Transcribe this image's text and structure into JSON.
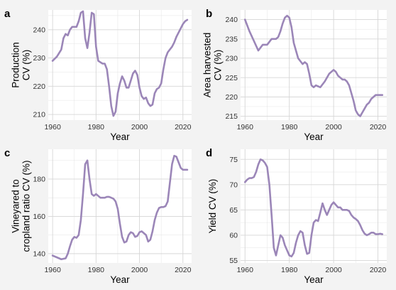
{
  "style": {
    "background": "#f3f3f3",
    "plot_background": "#ffffff",
    "line_color": "#9b86b8"
  },
  "chart_data": [
    {
      "panel": "a",
      "type": "line",
      "xlabel": "Year",
      "ylabel_lines": [
        "Production",
        "CV (%)"
      ],
      "xlim": [
        1958,
        2024
      ],
      "ylim": [
        208,
        247
      ],
      "xticks": [
        1960,
        1980,
        2000,
        2020
      ],
      "yticks": [
        210,
        220,
        230,
        240
      ],
      "grid": true,
      "x": [
        1960,
        1962,
        1964,
        1965,
        1966,
        1967,
        1968,
        1969,
        1970,
        1971,
        1972,
        1973,
        1974,
        1975,
        1976,
        1977,
        1978,
        1979,
        1980,
        1981,
        1982,
        1983,
        1984,
        1985,
        1986,
        1987,
        1988,
        1989,
        1990,
        1991,
        1992,
        1993,
        1994,
        1995,
        1996,
        1997,
        1998,
        1999,
        2000,
        2001,
        2002,
        2003,
        2004,
        2005,
        2006,
        2007,
        2008,
        2009,
        2010,
        2011,
        2012,
        2013,
        2014,
        2015,
        2016,
        2017,
        2018,
        2019,
        2020,
        2021,
        2022
      ],
      "values": [
        229,
        230.5,
        233,
        237,
        238.5,
        238,
        240,
        241,
        241,
        241,
        243,
        246,
        246.5,
        237,
        233.5,
        239,
        246,
        245.5,
        234,
        229,
        228.5,
        228,
        228,
        226,
        220,
        213,
        209.5,
        211,
        217.5,
        221,
        223.5,
        222,
        219.5,
        219.5,
        222,
        224.5,
        225.5,
        224,
        219.5,
        216.5,
        215.5,
        216,
        214,
        213,
        213.5,
        217.5,
        219,
        219.5,
        221,
        226,
        230,
        232,
        233,
        234,
        235.5,
        237.5,
        239,
        240.5,
        242,
        243,
        243.5
      ]
    },
    {
      "panel": "b",
      "type": "line",
      "xlabel": "Year",
      "ylabel_lines": [
        "Area harvested",
        "CV (%)"
      ],
      "xlim": [
        1958,
        2024
      ],
      "ylim": [
        214,
        242.5
      ],
      "xticks": [
        1960,
        1980,
        2000,
        2020
      ],
      "yticks": [
        215,
        220,
        225,
        230,
        235,
        240
      ],
      "grid": true,
      "x": [
        1960,
        1962,
        1964,
        1966,
        1968,
        1970,
        1972,
        1974,
        1975,
        1976,
        1977,
        1978,
        1979,
        1980,
        1981,
        1982,
        1984,
        1986,
        1987,
        1988,
        1989,
        1990,
        1991,
        1992,
        1994,
        1996,
        1998,
        2000,
        2001,
        2002,
        2003,
        2004,
        2005,
        2006,
        2007,
        2008,
        2009,
        2010,
        2011,
        2012,
        2013,
        2014,
        2015,
        2016,
        2017,
        2018,
        2019,
        2020,
        2021,
        2022
      ],
      "values": [
        240,
        237,
        234.5,
        232,
        233.5,
        233.5,
        235,
        235,
        235.5,
        237,
        239,
        240.5,
        241,
        240.5,
        238,
        234,
        230,
        228.5,
        229,
        228.5,
        226,
        223,
        222.5,
        223,
        222.5,
        224,
        226,
        227,
        226.5,
        225.5,
        225,
        224.5,
        224.5,
        224,
        223,
        221,
        219,
        216.5,
        215.5,
        215,
        216,
        217,
        218,
        218.5,
        219.5,
        220,
        220.5,
        220.5,
        220.5,
        220.5
      ]
    },
    {
      "panel": "c",
      "type": "line",
      "xlabel": "Year",
      "ylabel_lines": [
        "Vineyared to",
        "cropland ratio CV (%)"
      ],
      "xlim": [
        1958,
        2024
      ],
      "ylim": [
        135,
        196
      ],
      "xticks": [
        1960,
        1980,
        2000,
        2020
      ],
      "yticks": [
        140,
        160,
        180
      ],
      "grid": true,
      "x": [
        1960,
        1962,
        1964,
        1966,
        1967,
        1968,
        1969,
        1970,
        1971,
        1972,
        1973,
        1974,
        1975,
        1976,
        1977,
        1978,
        1979,
        1980,
        1981,
        1982,
        1983,
        1984,
        1985,
        1986,
        1987,
        1988,
        1989,
        1990,
        1991,
        1992,
        1993,
        1994,
        1995,
        1996,
        1997,
        1998,
        1999,
        2000,
        2001,
        2002,
        2003,
        2004,
        2005,
        2006,
        2007,
        2008,
        2009,
        2010,
        2011,
        2012,
        2013,
        2014,
        2015,
        2016,
        2017,
        2018,
        2019,
        2020,
        2021,
        2022
      ],
      "values": [
        139,
        138,
        137,
        137.5,
        140,
        144,
        147.5,
        149,
        148.5,
        150,
        158,
        172,
        188,
        190,
        180,
        172,
        171,
        172,
        171,
        170,
        170,
        170,
        170.5,
        170.5,
        170,
        169.5,
        168,
        164,
        156,
        149,
        146,
        146.5,
        150,
        151.5,
        151,
        149,
        149.5,
        151.5,
        152,
        151,
        150,
        146.5,
        147.5,
        152,
        158,
        162,
        164.5,
        165,
        165,
        165.5,
        168,
        178,
        188,
        192.5,
        192,
        189,
        186,
        185,
        185,
        185
      ]
    },
    {
      "panel": "d",
      "type": "line",
      "xlabel": "Year",
      "ylabel_lines": [
        "Yield CV (%)"
      ],
      "xlim": [
        1958,
        2024
      ],
      "ylim": [
        54.5,
        77
      ],
      "xticks": [
        1960,
        1980,
        2000,
        2020
      ],
      "yticks": [
        55,
        60,
        65,
        70,
        75
      ],
      "grid": true,
      "x": [
        1960,
        1961,
        1962,
        1963,
        1964,
        1965,
        1966,
        1967,
        1968,
        1969,
        1970,
        1971,
        1972,
        1973,
        1974,
        1975,
        1976,
        1977,
        1978,
        1979,
        1980,
        1981,
        1982,
        1983,
        1984,
        1985,
        1986,
        1987,
        1988,
        1989,
        1990,
        1991,
        1992,
        1993,
        1994,
        1995,
        1996,
        1997,
        1998,
        1999,
        2000,
        2001,
        2002,
        2003,
        2004,
        2005,
        2006,
        2007,
        2008,
        2009,
        2010,
        2011,
        2012,
        2013,
        2014,
        2015,
        2016,
        2017,
        2018,
        2019,
        2020,
        2021,
        2022
      ],
      "values": [
        70.5,
        71,
        71.3,
        71.3,
        71.5,
        72.5,
        74,
        75,
        74.8,
        74.3,
        73.5,
        70,
        64,
        57.5,
        56,
        58,
        60,
        59.5,
        58,
        57,
        56,
        55.8,
        56.5,
        58.5,
        60,
        60.8,
        60.5,
        58,
        56.3,
        56.5,
        60,
        62.5,
        63,
        62.8,
        64.5,
        66.3,
        65,
        64,
        65,
        66,
        66.5,
        66,
        65.5,
        65.5,
        65,
        65,
        65,
        64.8,
        64,
        63.5,
        63.2,
        62.8,
        62,
        61,
        60.3,
        60,
        60.2,
        60.5,
        60.5,
        60.2,
        60.2,
        60.3,
        60.2
      ]
    }
  ]
}
